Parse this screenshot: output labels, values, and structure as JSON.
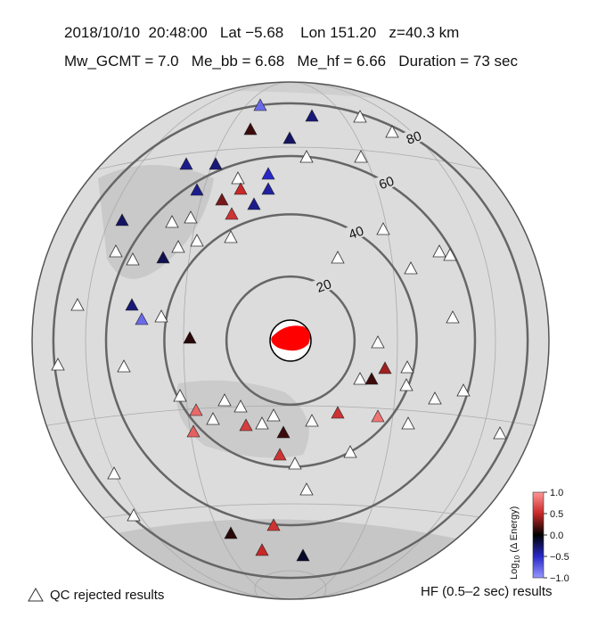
{
  "header": {
    "line1": "2018/10/10  20:48:00   Lat −5.68    Lon 151.20   z=40.3 km",
    "line2": "Mw_GCMT = 7.0   Me_bb = 6.68   Me_hf = 6.66   Duration = 73 sec"
  },
  "chart_data": {
    "type": "station-map",
    "distance_rings": [
      20,
      40,
      60,
      80
    ],
    "stations": {
      "values": [
        -0.8,
        -0.8,
        -0.3,
        -0.25,
        -0.35,
        -0.3,
        -0.35,
        -0.5,
        -0.4,
        -0.35,
        -0.25,
        -0.2,
        -0.3,
        -0.1,
        0.15,
        0.3,
        0.5,
        0.1,
        0.15,
        0.4,
        0.15,
        0.1,
        0.55,
        0.55,
        0.55,
        0.6,
        0.55,
        0.5,
        0.8,
        0.85,
        0.75
      ]
    },
    "colorbar": {
      "label_base": "Log",
      "label_sub": "10",
      "label_rest": " (Δ Energy)",
      "clim": [
        -1,
        1
      ],
      "ticks": [
        {
          "value": 1,
          "label": "1.0"
        },
        0.5,
        {
          "value": 0,
          "label": "0.0"
        },
        {
          "value": -0.5,
          "label": "−0.5"
        },
        {
          "value": -1,
          "label": "−1.0"
        }
      ]
    },
    "legend": {
      "qc_rejected": "QC rejected results",
      "caption": "HF (0.5–2 sec) results"
    }
  }
}
